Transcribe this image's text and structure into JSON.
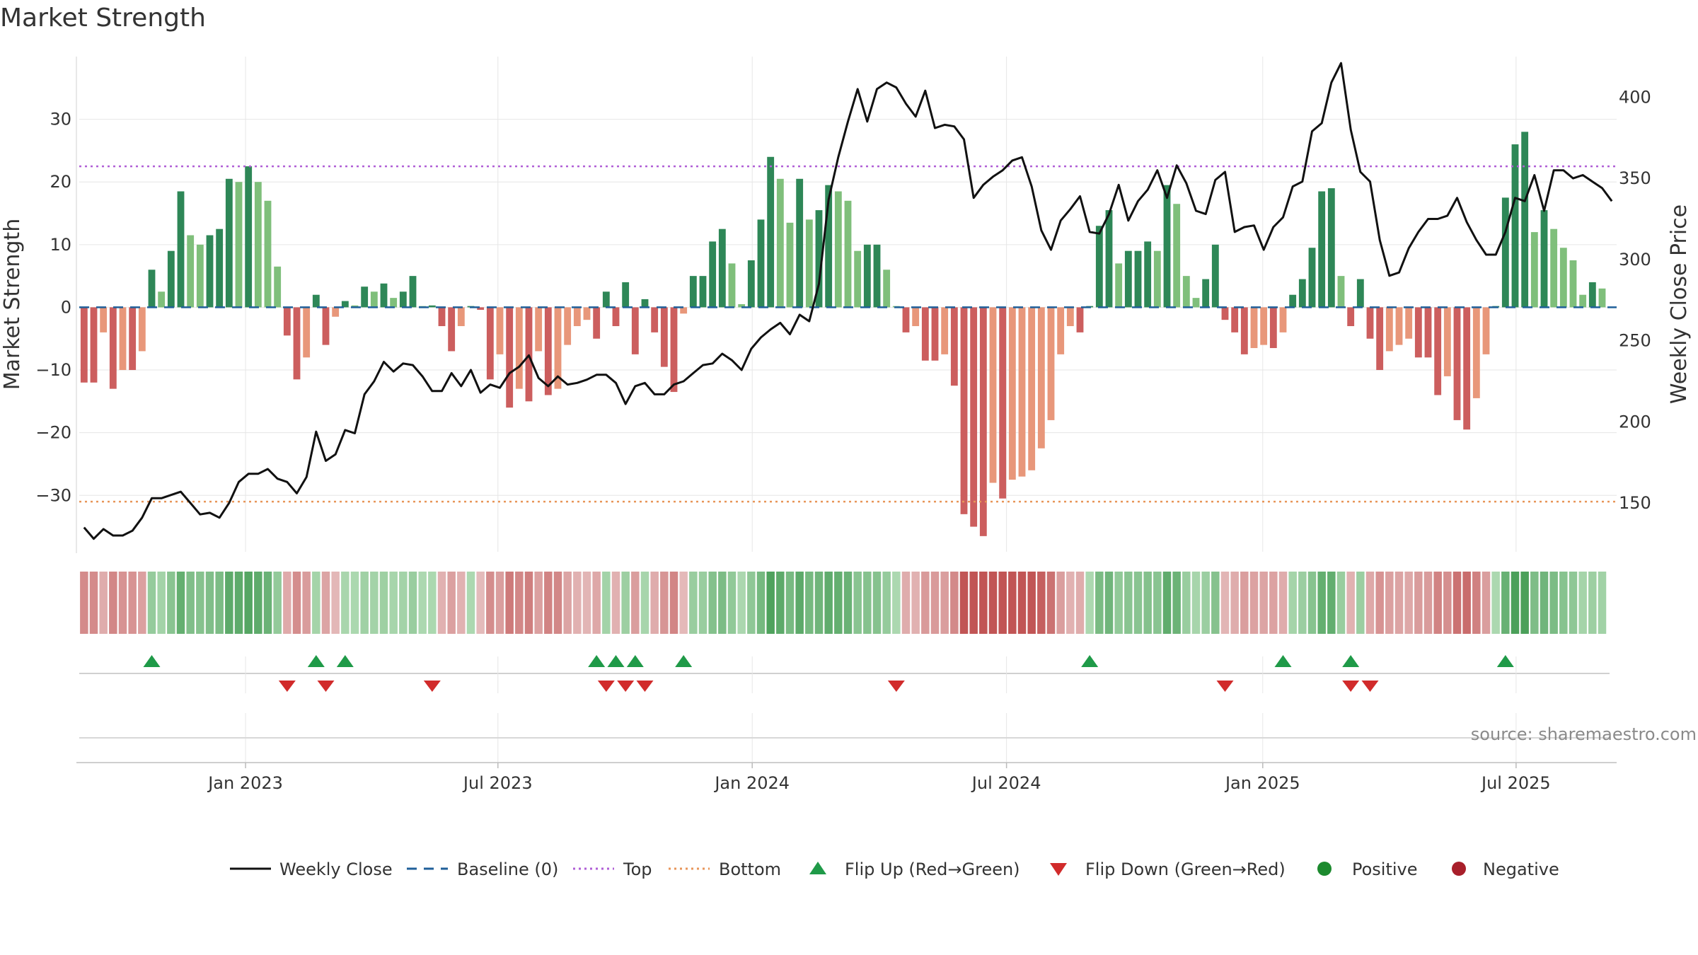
{
  "chart_data": {
    "type": "bar+line",
    "title": "Market Strength",
    "ylabel_left": "Market Strength",
    "ylabel_right": "Weekly Close Price",
    "source": "source: sharemaestro.com",
    "ylim_left": [
      -39,
      40
    ],
    "ylim_right": [
      120,
      425
    ],
    "yticks_left": [
      30,
      20,
      10,
      0,
      -10,
      -20,
      -30
    ],
    "ytick_labels_left": [
      "30",
      "20",
      "10",
      "0",
      "−10",
      "−20",
      "−30"
    ],
    "yticks_right": [
      400,
      350,
      300,
      250,
      200,
      150
    ],
    "ytick_labels_right": [
      "400",
      "350",
      "300",
      "250",
      "200",
      "150"
    ],
    "top_level": 22.5,
    "bottom_level": -31,
    "baseline": 0,
    "x_start": "2022-09-05",
    "week_count": 159,
    "xtick_labels": [
      "Jan 2023",
      "Jul 2023",
      "Jan 2024",
      "Jul 2024",
      "Jan 2025",
      "Jul 2025"
    ],
    "xtick_week_index": [
      17.2,
      43.3,
      69.6,
      95.9,
      122.4,
      148.6
    ],
    "strength": [
      -12,
      -12,
      -4,
      -13,
      -10,
      -10,
      -7,
      6,
      2.5,
      9,
      18.5,
      11.5,
      10,
      11.5,
      12.5,
      20.5,
      20,
      22.5,
      20,
      17,
      6.5,
      -4.5,
      -11.5,
      -8,
      2,
      -6,
      -1.5,
      1,
      0.3,
      3.3,
      2.5,
      3.8,
      1.5,
      2.5,
      5,
      0.2,
      0.3,
      -3,
      -7,
      -3,
      0.2,
      -0.4,
      -11.5,
      -7.5,
      -16,
      -13,
      -15,
      -7,
      -14,
      -13,
      -6,
      -3,
      -2,
      -5,
      2.5,
      -3,
      4,
      -7.5,
      1.3,
      -4,
      -9.5,
      -13.5,
      -1,
      5,
      5,
      10.5,
      12.5,
      7,
      0.5,
      7.5,
      14,
      24,
      20.5,
      13.5,
      20.5,
      14,
      15.5,
      19.5,
      18.5,
      17,
      9,
      10,
      10,
      6,
      0.2,
      -4,
      -3,
      -8.5,
      -8.5,
      -7.5,
      -12.5,
      -33,
      -35,
      -36.5,
      -28,
      -30.5,
      -27.5,
      -27,
      -26,
      -22.5,
      -18,
      -7.5,
      -3,
      -4,
      0.2,
      13,
      15.5,
      7,
      9,
      9,
      10.5,
      9,
      19.5,
      16.5,
      5,
      1.5,
      4.5,
      10,
      -2,
      -4,
      -7.5,
      -6.5,
      -6,
      -6.5,
      -4,
      2,
      4.5,
      9.5,
      18.5,
      19,
      5,
      -3,
      4.5,
      -5,
      -10,
      -7,
      -6,
      -5,
      -8,
      -8,
      -14,
      -11,
      -18,
      -19.5,
      -14.5,
      -7.5,
      0.2,
      17.5,
      26,
      28,
      12,
      15.5,
      12.5,
      9.5,
      7.5,
      2,
      4,
      3
    ],
    "close": [
      135,
      128,
      134,
      130,
      130,
      133,
      141,
      153,
      153,
      155,
      157,
      150,
      143,
      144,
      141,
      150,
      163,
      168,
      168,
      171,
      165,
      163,
      156,
      166,
      194,
      176,
      180,
      195,
      193,
      217,
      225,
      237,
      231,
      236,
      235,
      228,
      219,
      219,
      230,
      222,
      232,
      218,
      223,
      221,
      230,
      234,
      241,
      227,
      222,
      228,
      223,
      224,
      226,
      229,
      229,
      224,
      211,
      222,
      224,
      217,
      217,
      223,
      225,
      230,
      235,
      236,
      242,
      238,
      232,
      245,
      252,
      257,
      261,
      254,
      266,
      262,
      285,
      337,
      363,
      385,
      405,
      385,
      405,
      409,
      406,
      396,
      388,
      404,
      381,
      383,
      382,
      374,
      338,
      346,
      351,
      355,
      361,
      363,
      345,
      318,
      306,
      324,
      331,
      339,
      317,
      316,
      328,
      346,
      324,
      336,
      343,
      355,
      338,
      358,
      347,
      330,
      328,
      349,
      354,
      317,
      320,
      321,
      306,
      320,
      326,
      345,
      348,
      379,
      384,
      409,
      421,
      380,
      354,
      348,
      312,
      290,
      292,
      307,
      317,
      325,
      325,
      327,
      338,
      323,
      312,
      303,
      303,
      317,
      338,
      336,
      352,
      330,
      355,
      355,
      350,
      352,
      348,
      344,
      336
    ],
    "flip_up_weeks": [
      7,
      24,
      27,
      53,
      55,
      57,
      62,
      104,
      124,
      131,
      147
    ],
    "flip_down_weeks": [
      21,
      25,
      36,
      54,
      56,
      58,
      84,
      118,
      131,
      133
    ],
    "series": [
      {
        "name": "Weekly Close",
        "color": "#111111"
      },
      {
        "name": "Baseline (0)",
        "color": "#1f5f99"
      },
      {
        "name": "Top",
        "color": "#b05fd6"
      },
      {
        "name": "Bottom",
        "color": "#e8965a"
      },
      {
        "name": "Flip Up (Red→Green)",
        "color": "#1f9a48"
      },
      {
        "name": "Flip Down (Green→Red)",
        "color": "#d12b2b"
      },
      {
        "name": "Positive",
        "color": "#1c8a2e"
      },
      {
        "name": "Negative",
        "color": "#a81f2a"
      }
    ]
  }
}
